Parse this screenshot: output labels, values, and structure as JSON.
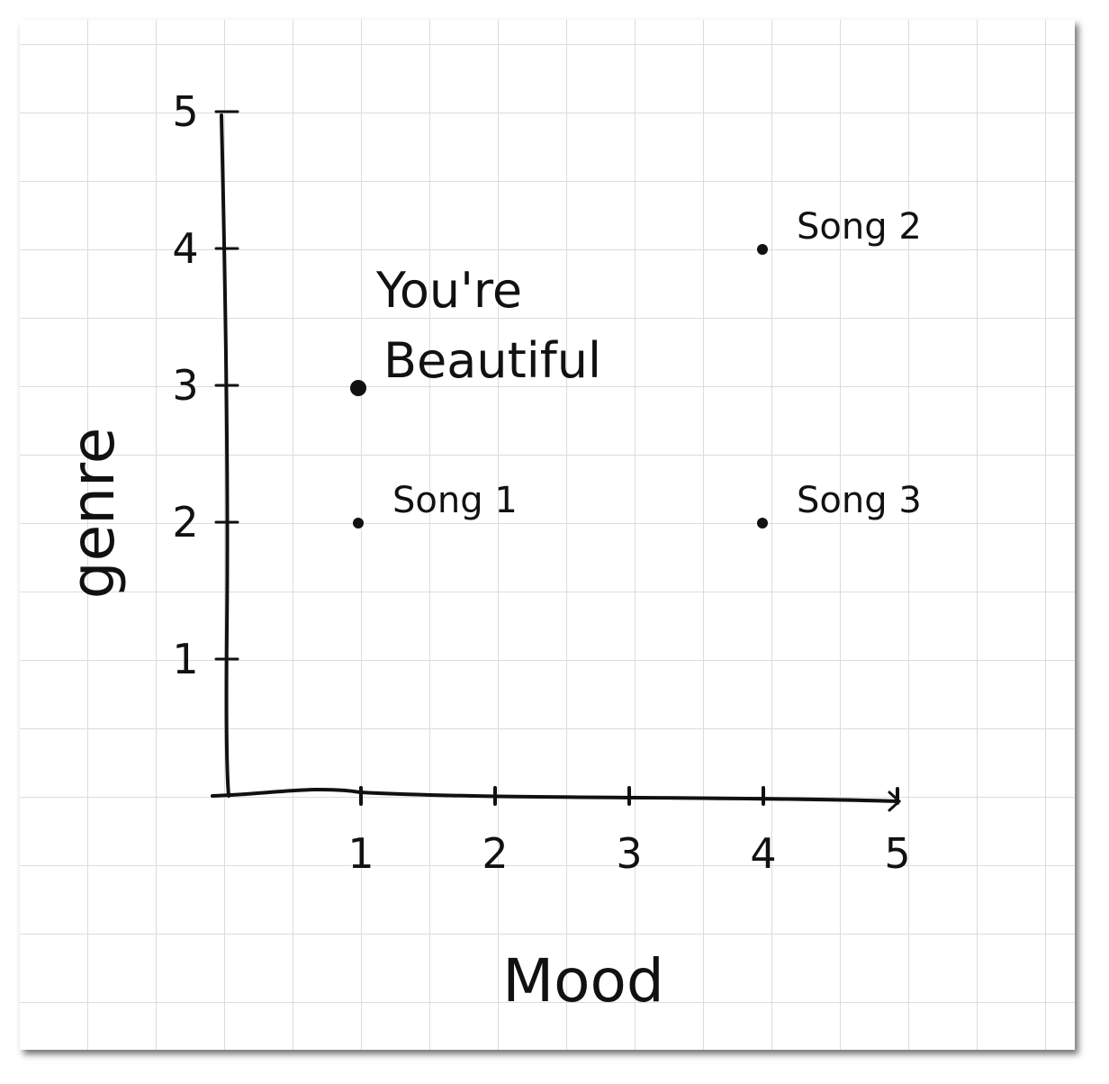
{
  "chart_data": {
    "type": "scatter",
    "title": "",
    "xlabel": "Mood",
    "ylabel": "genre",
    "xlim": [
      0,
      5
    ],
    "ylim": [
      0,
      5
    ],
    "x_ticks": [
      "1",
      "2",
      "3",
      "4",
      "5"
    ],
    "y_ticks": [
      "1",
      "2",
      "3",
      "4",
      "5"
    ],
    "grid": true,
    "points": [
      {
        "label": "You're Beautiful",
        "label_lines": [
          "You're",
          "Beautiful"
        ],
        "x": 1,
        "y": 3,
        "emphasized": true
      },
      {
        "label": "Song 1",
        "label_lines": [
          "Song 1"
        ],
        "x": 1,
        "y": 2,
        "emphasized": false
      },
      {
        "label": "Song 2",
        "label_lines": [
          "Song 2"
        ],
        "x": 4,
        "y": 4,
        "emphasized": false
      },
      {
        "label": "Song 3",
        "label_lines": [
          "Song 3"
        ],
        "x": 4,
        "y": 2,
        "emphasized": false
      }
    ],
    "colors": {
      "ink": "#111111",
      "grid": "#dcdcdc",
      "paper": "#ffffff"
    }
  }
}
